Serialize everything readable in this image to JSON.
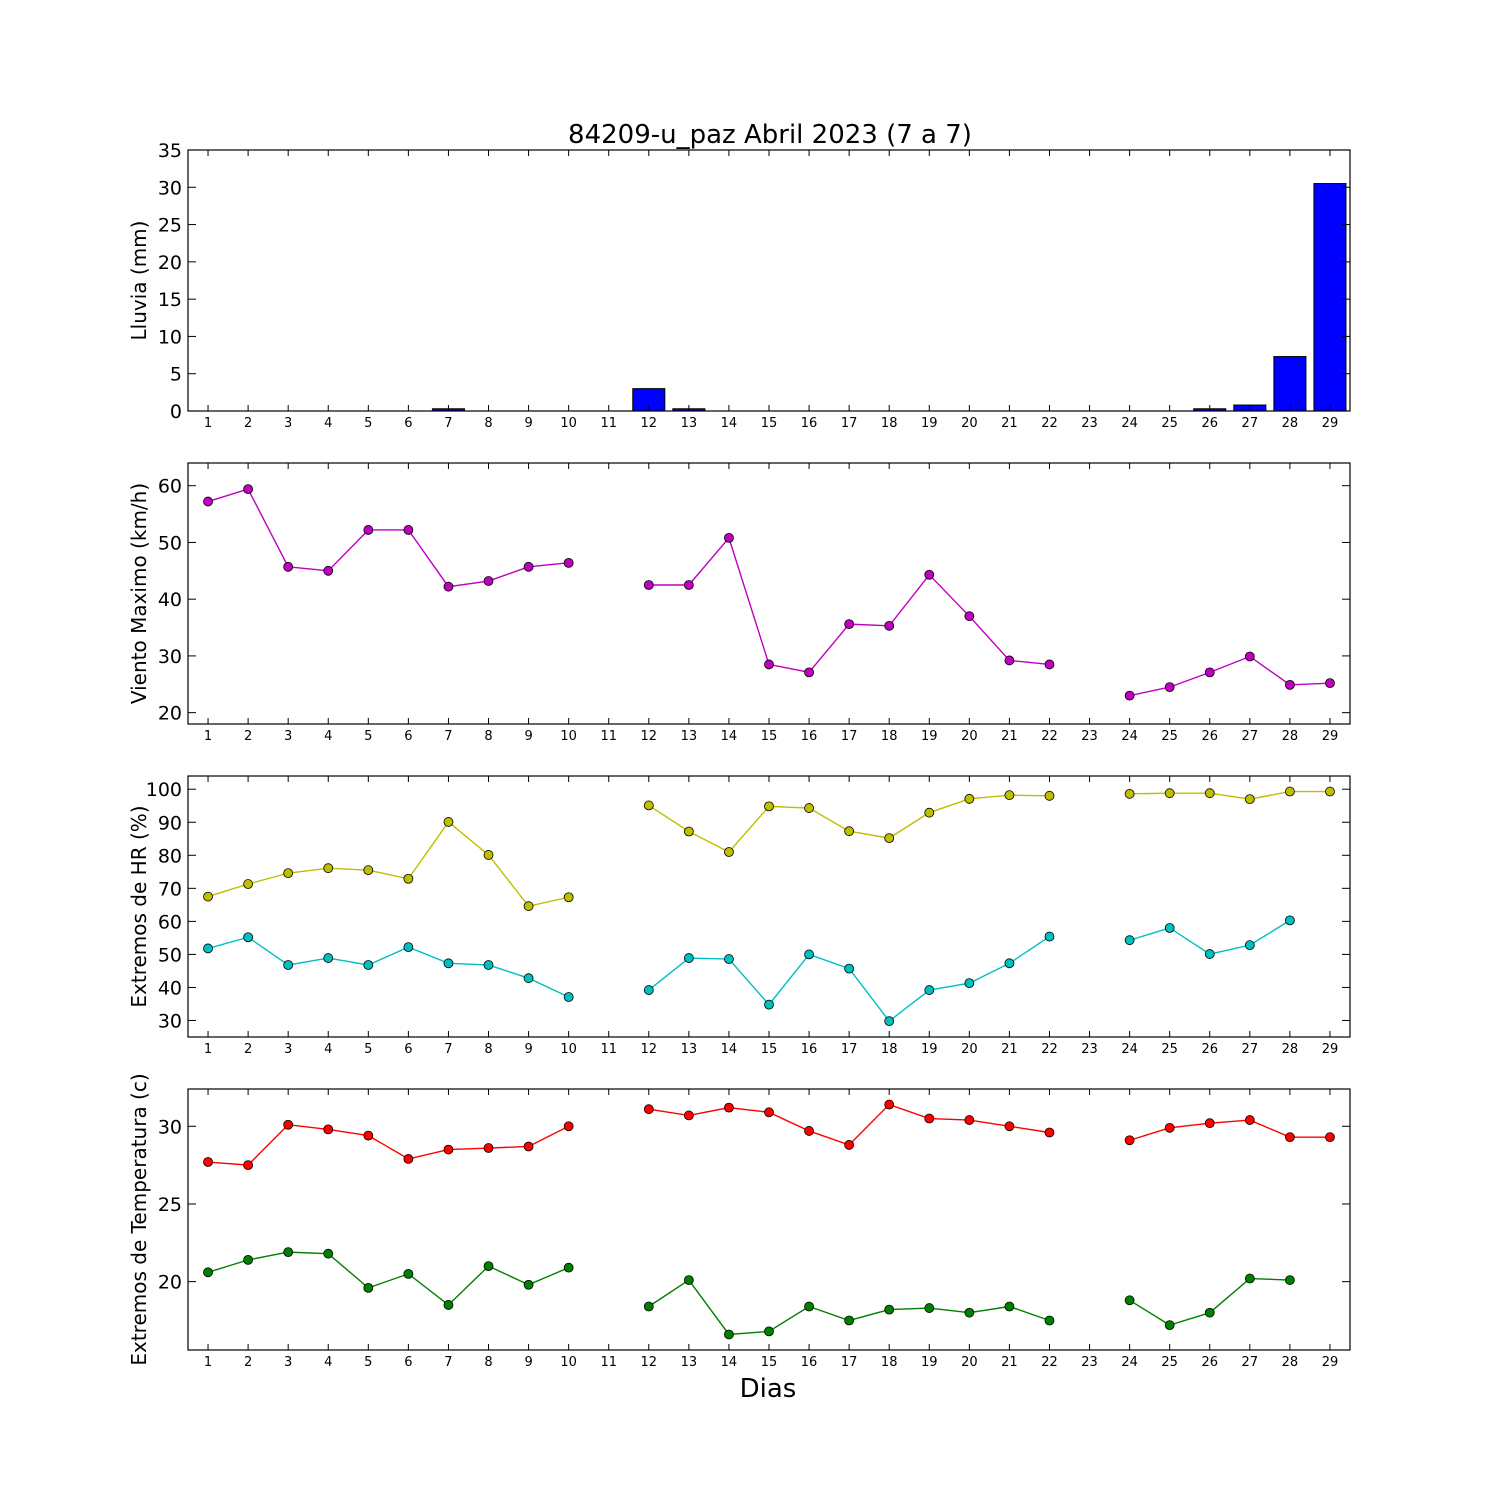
{
  "figure": {
    "title": "84209-u_paz Abril 2023  (7 a 7)",
    "xlabel": "Dias"
  },
  "chart_data": [
    {
      "type": "bar",
      "ylabel": "Lluvia (mm)",
      "ylim": [
        0,
        35
      ],
      "yticks": [
        0,
        5,
        10,
        15,
        20,
        25,
        30,
        35
      ],
      "x_ticks": [
        1,
        2,
        3,
        4,
        5,
        6,
        7,
        8,
        9,
        10,
        11,
        12,
        13,
        14,
        15,
        16,
        17,
        18,
        19,
        20,
        21,
        22,
        23,
        24,
        25,
        26,
        27,
        28,
        29
      ],
      "x": [
        1,
        2,
        3,
        4,
        5,
        6,
        7,
        8,
        9,
        10,
        11,
        12,
        13,
        14,
        15,
        16,
        17,
        18,
        19,
        20,
        21,
        22,
        23,
        24,
        25,
        26,
        27,
        28,
        29
      ],
      "series": [
        {
          "values": [
            0,
            0,
            0,
            0,
            0,
            0,
            0.3,
            0,
            0,
            0,
            null,
            3.0,
            0.3,
            0,
            0,
            0,
            0,
            0,
            0,
            0,
            0,
            0,
            null,
            0,
            0,
            0.3,
            0.8,
            7.3,
            30.5
          ],
          "color": "#0000ff"
        }
      ]
    },
    {
      "type": "line",
      "ylabel": "Viento Maximo (km/h)",
      "ylim": [
        18,
        64
      ],
      "yticks": [
        20,
        30,
        40,
        50,
        60
      ],
      "x_ticks": [
        1,
        2,
        3,
        4,
        5,
        6,
        7,
        8,
        9,
        10,
        11,
        12,
        13,
        14,
        15,
        16,
        17,
        18,
        19,
        20,
        21,
        22,
        23,
        24,
        25,
        26,
        27,
        28,
        29
      ],
      "x": [
        1,
        2,
        3,
        4,
        5,
        6,
        7,
        8,
        9,
        10,
        11,
        12,
        13,
        14,
        15,
        16,
        17,
        18,
        19,
        20,
        21,
        22,
        23,
        24,
        25,
        26,
        27,
        28,
        29
      ],
      "series": [
        {
          "values": [
            57.2,
            59.4,
            45.7,
            45.0,
            52.2,
            52.2,
            42.2,
            43.2,
            45.7,
            46.4,
            null,
            42.5,
            42.5,
            50.8,
            28.5,
            27.1,
            35.6,
            35.3,
            44.3,
            37.0,
            29.2,
            28.5,
            null,
            23.0,
            24.5,
            27.1,
            29.9,
            24.9,
            25.2
          ],
          "color": "#bf00bf"
        }
      ]
    },
    {
      "type": "line",
      "ylabel": "Extremos de HR (%)",
      "ylim": [
        25,
        104
      ],
      "yticks": [
        30,
        40,
        50,
        60,
        70,
        80,
        90,
        100
      ],
      "x_ticks": [
        1,
        2,
        3,
        4,
        5,
        6,
        7,
        8,
        9,
        10,
        11,
        12,
        13,
        14,
        15,
        16,
        17,
        18,
        19,
        20,
        21,
        22,
        23,
        24,
        25,
        26,
        27,
        28,
        29
      ],
      "x": [
        1,
        2,
        3,
        4,
        5,
        6,
        7,
        8,
        9,
        10,
        11,
        12,
        13,
        14,
        15,
        16,
        17,
        18,
        19,
        20,
        21,
        22,
        23,
        24,
        25,
        26,
        27,
        28,
        29
      ],
      "series": [
        {
          "values": [
            67.5,
            71.3,
            74.6,
            76.1,
            75.5,
            72.9,
            90.1,
            80.1,
            64.6,
            67.3,
            null,
            95.1,
            87.2,
            81.0,
            94.8,
            94.3,
            87.3,
            85.2,
            92.9,
            97.1,
            98.2,
            98.0,
            null,
            98.6,
            98.8,
            98.8,
            97.0,
            99.3,
            99.3
          ],
          "color": "#bfbf00"
        },
        {
          "values": [
            51.8,
            55.2,
            46.8,
            48.9,
            46.8,
            52.2,
            47.3,
            46.8,
            42.8,
            37.1,
            null,
            39.2,
            48.9,
            48.6,
            34.8,
            50.0,
            45.7,
            29.8,
            39.2,
            41.3,
            47.3,
            55.4,
            null,
            54.3,
            58.0,
            50.1,
            52.8,
            60.3,
            null
          ],
          "color": "#00bfbf"
        }
      ]
    },
    {
      "type": "line",
      "ylabel": "Extremos de Temperatura (c)",
      "ylim": [
        15.6,
        32.4
      ],
      "yticks": [
        20,
        25,
        30
      ],
      "x_ticks": [
        1,
        2,
        3,
        4,
        5,
        6,
        7,
        8,
        9,
        10,
        11,
        12,
        13,
        14,
        15,
        16,
        17,
        18,
        19,
        20,
        21,
        22,
        23,
        24,
        25,
        26,
        27,
        28,
        29
      ],
      "x": [
        1,
        2,
        3,
        4,
        5,
        6,
        7,
        8,
        9,
        10,
        11,
        12,
        13,
        14,
        15,
        16,
        17,
        18,
        19,
        20,
        21,
        22,
        23,
        24,
        25,
        26,
        27,
        28,
        29
      ],
      "series": [
        {
          "values": [
            27.7,
            27.5,
            30.1,
            29.8,
            29.4,
            27.9,
            28.5,
            28.6,
            28.7,
            30.0,
            null,
            31.1,
            30.7,
            31.2,
            30.9,
            29.7,
            28.8,
            31.4,
            30.5,
            30.4,
            30.0,
            29.6,
            null,
            29.1,
            29.9,
            30.2,
            30.4,
            29.3,
            29.3
          ],
          "color": "#ff0000"
        },
        {
          "values": [
            20.6,
            21.4,
            21.9,
            21.8,
            19.6,
            20.5,
            18.5,
            21.0,
            19.8,
            20.9,
            null,
            18.4,
            20.1,
            16.6,
            16.8,
            18.4,
            17.5,
            18.2,
            18.3,
            18.0,
            18.4,
            17.5,
            null,
            18.8,
            17.2,
            18.0,
            20.2,
            20.1,
            null
          ],
          "color": "#008000"
        }
      ]
    }
  ]
}
